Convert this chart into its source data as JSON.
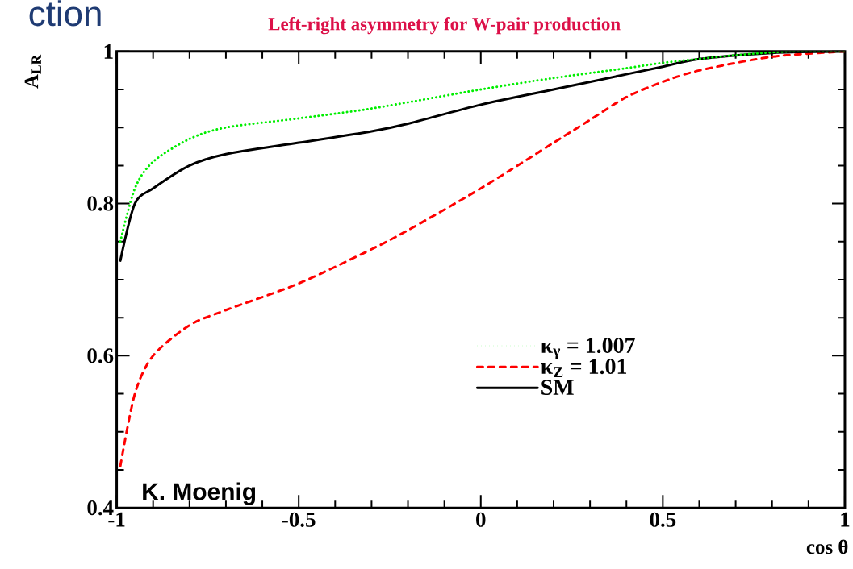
{
  "chart_data": {
    "type": "line",
    "title": "Left-right asymmetry for W-pair production",
    "xlabel": "cos θ",
    "ylabel": "A$_{LR}$",
    "xlim": [
      -1,
      1
    ],
    "xticks": [
      -1,
      -0.5,
      0,
      0.5,
      1
    ],
    "ylim": [
      0.4,
      1
    ],
    "yticks": [
      0.4,
      0.6,
      0.8,
      1
    ],
    "grid": false,
    "legend": "bottom right",
    "marker": "none",
    "annotations": [
      "K. Moenig",
      "ction"
    ],
    "series": [
      {
        "name": "κ$_{γ}$ = 1.007",
        "color": "#00ee00",
        "line_style": "dotted",
        "x": [
          -0.99,
          -0.95,
          -0.9,
          -0.8,
          -0.7,
          -0.5,
          -0.3,
          0,
          0.2,
          0.4,
          0.5,
          0.7,
          0.85,
          1
        ],
        "values": [
          0.75,
          0.82,
          0.855,
          0.885,
          0.9,
          0.912,
          0.925,
          0.95,
          0.965,
          0.978,
          0.985,
          0.995,
          1.0,
          1.0
        ]
      },
      {
        "name": "κ$_{Z}$ = 1.01",
        "color": "#ff0000",
        "line_style": "dashed",
        "x": [
          -0.99,
          -0.95,
          -0.9,
          -0.8,
          -0.7,
          -0.5,
          -0.3,
          -0.2,
          0,
          0.2,
          0.3,
          0.4,
          0.5,
          0.6,
          0.8,
          1
        ],
        "values": [
          0.455,
          0.55,
          0.6,
          0.64,
          0.66,
          0.695,
          0.74,
          0.765,
          0.82,
          0.88,
          0.91,
          0.94,
          0.96,
          0.975,
          0.993,
          1.0
        ]
      },
      {
        "name": "SM",
        "color": "#000000",
        "line_style": "solid",
        "x": [
          -0.99,
          -0.95,
          -0.9,
          -0.8,
          -0.7,
          -0.5,
          -0.3,
          -0.2,
          0,
          0.2,
          0.4,
          0.5,
          0.6,
          0.8,
          1
        ],
        "values": [
          0.725,
          0.8,
          0.82,
          0.85,
          0.865,
          0.88,
          0.895,
          0.905,
          0.93,
          0.95,
          0.97,
          0.98,
          0.99,
          0.998,
          1.0
        ]
      }
    ]
  }
}
